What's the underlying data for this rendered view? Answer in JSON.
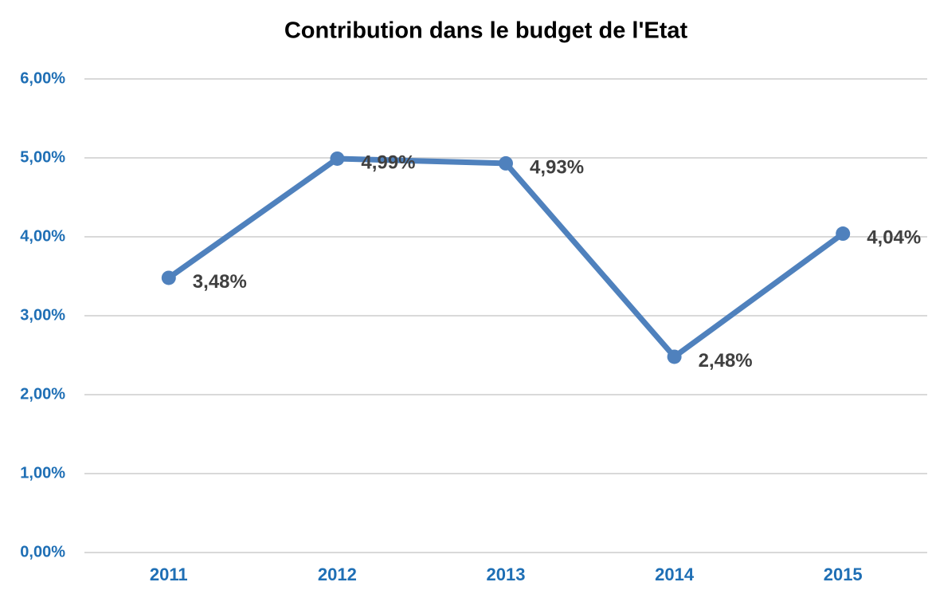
{
  "chart_data": {
    "type": "line",
    "title": "Contribution dans le budget de l'Etat",
    "categories": [
      "2011",
      "2012",
      "2013",
      "2014",
      "2015"
    ],
    "values": [
      3.48,
      4.99,
      4.93,
      2.48,
      4.04
    ],
    "value_labels": [
      "3,48%",
      "4,99%",
      "4,93%",
      "2,48%",
      "4,04%"
    ],
    "color": "#4f81bd",
    "ylim": [
      0,
      6
    ],
    "yticks": [
      {
        "value": 0,
        "label": "0,00%"
      },
      {
        "value": 1,
        "label": "1,00%"
      },
      {
        "value": 2,
        "label": "2,00%"
      },
      {
        "value": 3,
        "label": "3,00%"
      },
      {
        "value": 4,
        "label": "4,00%"
      },
      {
        "value": 5,
        "label": "5,00%"
      },
      {
        "value": 6,
        "label": "6,00%"
      }
    ],
    "grid": true
  }
}
